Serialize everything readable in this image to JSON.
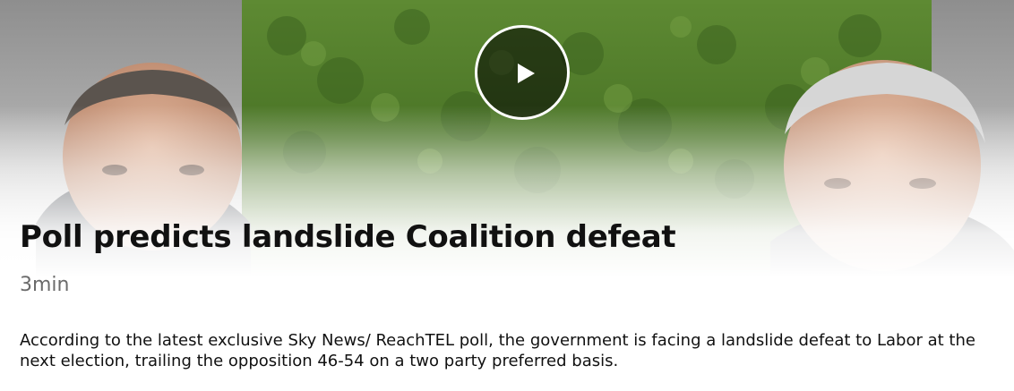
{
  "video": {
    "headline": "Poll predicts landslide Coalition defeat",
    "duration": "3min",
    "summary": "According to the latest exclusive Sky News/ ReachTEL poll, the government is facing a landslide defeat to Labor at the next election, trailing the opposition 46-54 on a two party preferred basis.",
    "play_icon": "play-icon"
  },
  "colors": {
    "headline": "#111111",
    "duration": "#6b6b6b",
    "hedge": "#4f7a2c"
  }
}
